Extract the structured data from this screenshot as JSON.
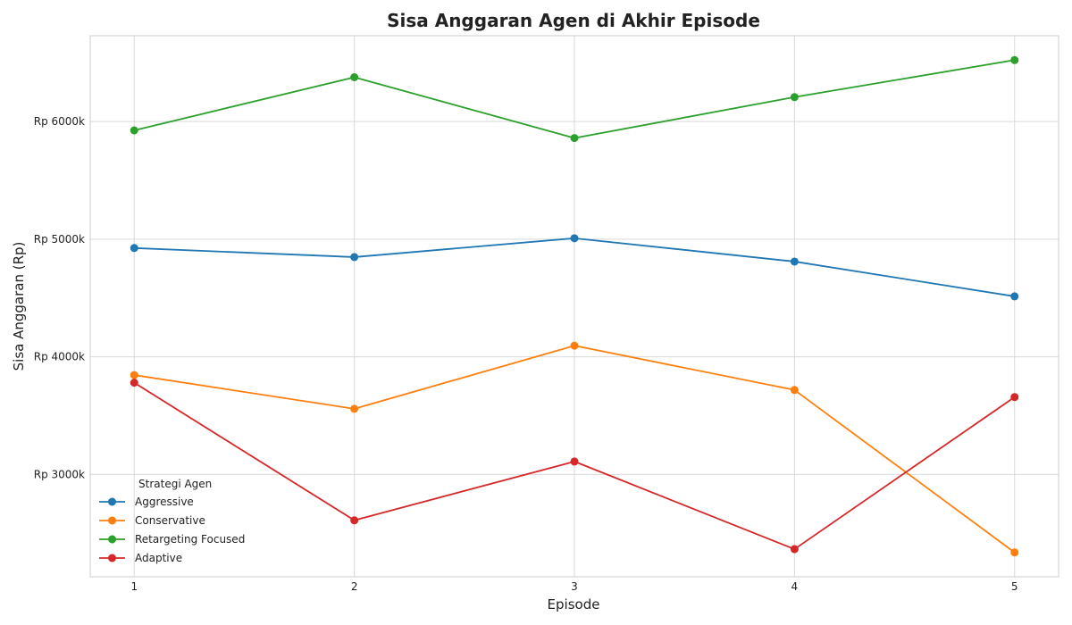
{
  "chart_data": {
    "type": "line",
    "title": "Sisa Anggaran Agen di Akhir Episode",
    "xlabel": "Episode",
    "ylabel": "Sisa Anggaran (Rp)",
    "x": [
      1,
      2,
      3,
      4,
      5
    ],
    "x_tick_labels": [
      "1",
      "2",
      "3",
      "4",
      "5"
    ],
    "y_ticks": [
      3000,
      4000,
      5000,
      6000
    ],
    "y_tick_labels": [
      "Rp 3000k",
      "Rp 4000k",
      "Rp 5000k",
      "Rp 6000k"
    ],
    "xlim": [
      0.8,
      5.2
    ],
    "ylim": [
      2130,
      6730
    ],
    "grid": true,
    "legend_title": "Strategi Agen",
    "legend_position": "lower-left",
    "series": [
      {
        "name": "Aggressive",
        "color": "#1f77b4",
        "values": [
          4925,
          4848,
          5008,
          4810,
          4514
        ]
      },
      {
        "name": "Conservative",
        "color": "#ff7f0e",
        "values": [
          3845,
          3558,
          4095,
          3718,
          2337
        ]
      },
      {
        "name": "Retargeting Focused",
        "color": "#2ca02c",
        "values": [
          5925,
          6377,
          5860,
          6208,
          6523
        ]
      },
      {
        "name": "Adaptive",
        "color": "#d62728",
        "values": [
          3780,
          2610,
          3110,
          2365,
          3658
        ]
      }
    ]
  }
}
